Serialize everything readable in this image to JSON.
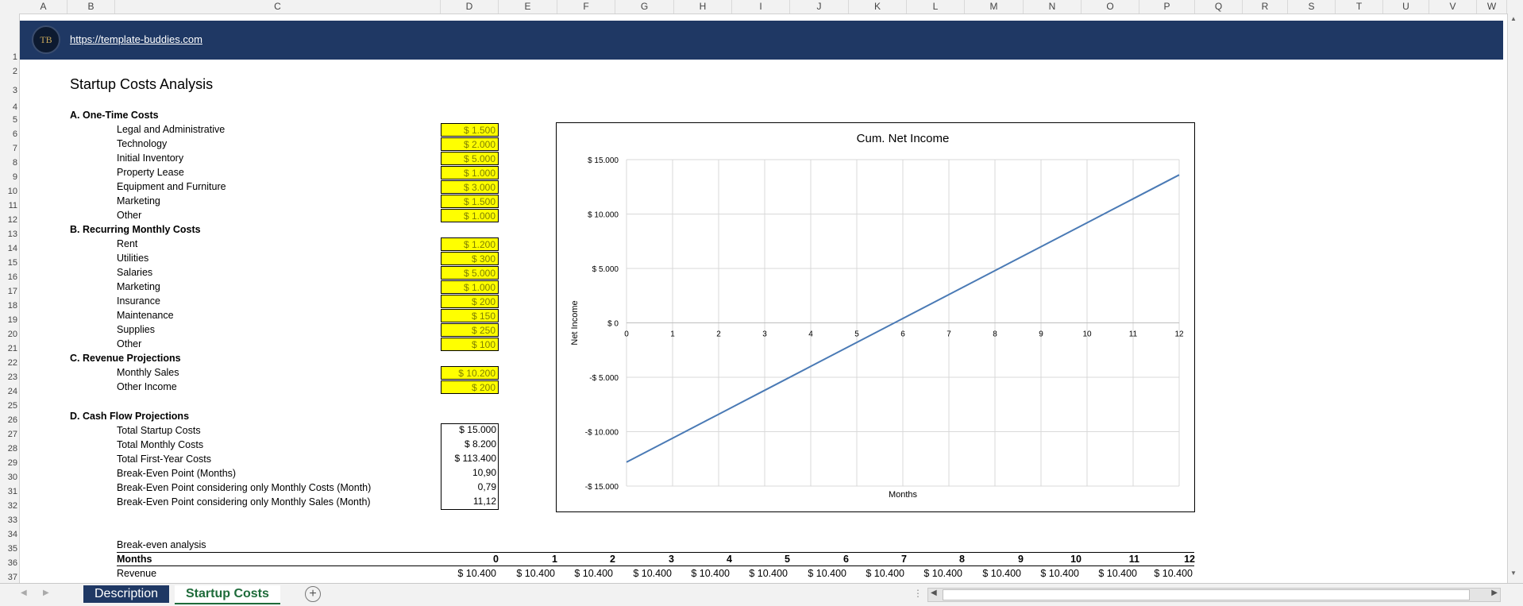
{
  "columns": [
    "A",
    "B",
    "C",
    "D",
    "E",
    "F",
    "G",
    "H",
    "I",
    "J",
    "K",
    "L",
    "M",
    "N",
    "O",
    "P",
    "Q",
    "R",
    "S",
    "T",
    "U",
    "V",
    "W"
  ],
  "rows": [
    "1",
    "2",
    "3",
    "4",
    "5",
    "6",
    "7",
    "8",
    "9",
    "10",
    "11",
    "12",
    "13",
    "14",
    "15",
    "16",
    "17",
    "18",
    "19",
    "20",
    "21",
    "22",
    "23",
    "24",
    "25",
    "26",
    "27",
    "28",
    "29",
    "30",
    "31",
    "32",
    "33",
    "34",
    "35",
    "36",
    "37"
  ],
  "banner": {
    "logo_text": "TB",
    "link": "https://template-buddies.com"
  },
  "title": "Startup Costs Analysis",
  "sections": {
    "a_title": "A. One-Time Costs",
    "b_title": "B. Recurring Monthly Costs",
    "c_title": "C. Revenue Projections",
    "d_title": "D. Cash Flow Projections"
  },
  "one_time": [
    {
      "label": "Legal and Administrative",
      "value": "$ 1.500"
    },
    {
      "label": "Technology",
      "value": "$ 2.000"
    },
    {
      "label": "Initial Inventory",
      "value": "$ 5.000"
    },
    {
      "label": "Property Lease",
      "value": "$ 1.000"
    },
    {
      "label": "Equipment and Furniture",
      "value": "$ 3.000"
    },
    {
      "label": "Marketing",
      "value": "$ 1.500"
    },
    {
      "label": "Other",
      "value": "$ 1.000"
    }
  ],
  "monthly": [
    {
      "label": "Rent",
      "value": "$ 1.200"
    },
    {
      "label": "Utilities",
      "value": "$ 300"
    },
    {
      "label": "Salaries",
      "value": "$ 5.000"
    },
    {
      "label": "Marketing",
      "value": "$ 1.000"
    },
    {
      "label": "Insurance",
      "value": "$ 200"
    },
    {
      "label": "Maintenance",
      "value": "$ 150"
    },
    {
      "label": "Supplies",
      "value": "$ 250"
    },
    {
      "label": "Other",
      "value": "$ 100"
    }
  ],
  "revenue": [
    {
      "label": "Monthly Sales",
      "value": "$ 10.200"
    },
    {
      "label": "Other Income",
      "value": "$ 200"
    }
  ],
  "cashflow": [
    {
      "label": "Total Startup Costs",
      "value": "$ 15.000"
    },
    {
      "label": "Total Monthly Costs",
      "value": "$ 8.200"
    },
    {
      "label": "Total First-Year Costs",
      "value": "$ 113.400"
    },
    {
      "label": "Break-Even Point (Months)",
      "value": "10,90"
    },
    {
      "label": "Break-Even Point considering only Monthly Costs (Month)",
      "value": "0,79"
    },
    {
      "label": "Break-Even Point considering only Monthly Sales (Month)",
      "value": "11,12"
    }
  ],
  "breakeven": {
    "caption": "Break-even analysis",
    "months_label": "Months",
    "revenue_label": "Revenue",
    "months": [
      "0",
      "1",
      "2",
      "3",
      "4",
      "5",
      "6",
      "7",
      "8",
      "9",
      "10",
      "11",
      "12"
    ],
    "revenue": [
      "$ 10.400",
      "$ 10.400",
      "$ 10.400",
      "$ 10.400",
      "$ 10.400",
      "$ 10.400",
      "$ 10.400",
      "$ 10.400",
      "$ 10.400",
      "$ 10.400",
      "$ 10.400",
      "$ 10.400",
      "$ 10.400"
    ]
  },
  "chart_data": {
    "type": "line",
    "title": "Cum. Net Income",
    "xlabel": "Months",
    "ylabel": "Net Income",
    "x": [
      0,
      1,
      2,
      3,
      4,
      5,
      6,
      7,
      8,
      9,
      10,
      11,
      12
    ],
    "series": [
      {
        "values": [
          -12800,
          -10600,
          -8400,
          -6200,
          -4000,
          -1800,
          400,
          2600,
          4800,
          7000,
          9200,
          11400,
          13600
        ]
      }
    ],
    "ylim": [
      -15000,
      15000
    ],
    "yticks": [
      "$ 15.000",
      "$ 10.000",
      "$ 5.000",
      "$ 0",
      "-$ 5.000",
      "-$ 10.000",
      "-$ 15.000"
    ],
    "yticks_values": [
      15000,
      10000,
      5000,
      0,
      -5000,
      -10000,
      -15000
    ],
    "grid": true,
    "line_color": "#4a7ab5"
  },
  "tabs": [
    {
      "label": "Description",
      "active": false
    },
    {
      "label": "Startup Costs",
      "active": true
    }
  ]
}
